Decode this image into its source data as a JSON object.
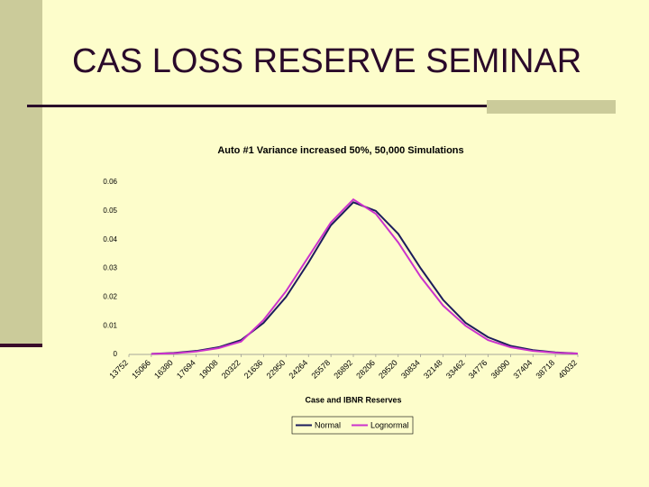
{
  "slide_title": "CAS LOSS RESERVE SEMINAR",
  "chart_data": {
    "type": "line",
    "title": "Auto #1 Variance increased 50%, 50,000 Simulations",
    "x_label": "Case and IBNR Reserves",
    "categories": [
      "13752",
      "15066",
      "16380",
      "17694",
      "19008",
      "20322",
      "21636",
      "22950",
      "24264",
      "25578",
      "26892",
      "28206",
      "29520",
      "30834",
      "32148",
      "33462",
      "34776",
      "36090",
      "37404",
      "38718",
      "40032"
    ],
    "series": [
      {
        "name": "Normal",
        "color": "#1c1c5c",
        "values": [
          null,
          0.0002,
          0.0005,
          0.0012,
          0.0025,
          0.005,
          0.011,
          0.02,
          0.032,
          0.045,
          0.053,
          0.05,
          0.042,
          0.03,
          0.019,
          0.011,
          0.006,
          0.003,
          0.0015,
          0.0007,
          0.0003
        ]
      },
      {
        "name": "Lognormal",
        "color": "#cc33cc",
        "values": [
          null,
          0.0002,
          0.0004,
          0.001,
          0.0022,
          0.0045,
          0.012,
          0.022,
          0.034,
          0.046,
          0.054,
          0.049,
          0.039,
          0.027,
          0.017,
          0.01,
          0.005,
          0.0025,
          0.0012,
          0.0006,
          0.0003
        ]
      }
    ],
    "ylim": [
      0,
      0.06
    ],
    "yticks": [
      0,
      0.01,
      0.02,
      0.03,
      0.04,
      0.05,
      0.06
    ],
    "grid": false
  }
}
